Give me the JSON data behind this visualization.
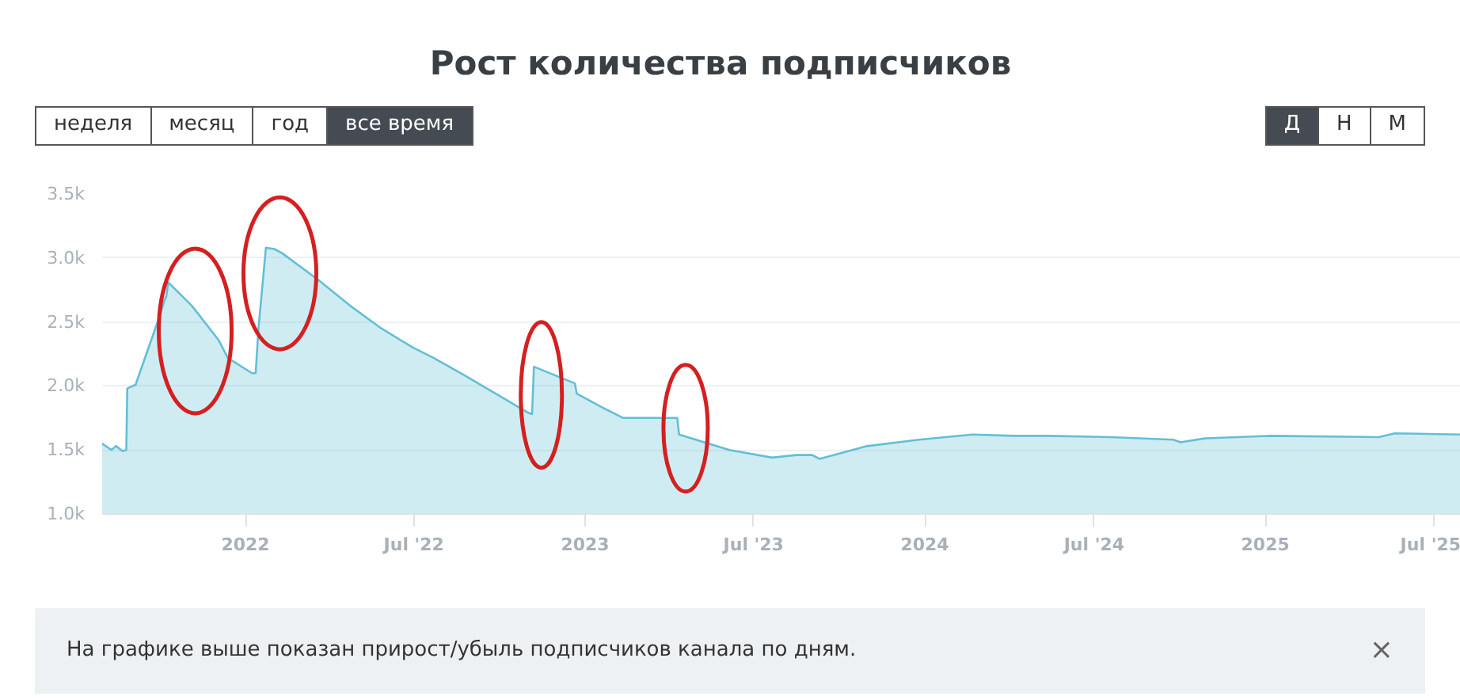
{
  "chart_data": {
    "type": "area",
    "title": "Рост количества подписчиков",
    "x": [
      "2021-07-31",
      "2021-08-10",
      "2021-08-15",
      "2021-08-22",
      "2021-08-26",
      "2021-08-27",
      "2021-09-05",
      "2021-10-01",
      "2021-10-06",
      "2021-10-08",
      "2021-10-10",
      "2021-11-04",
      "2021-12-03",
      "2021-12-13",
      "2022-01-08",
      "2022-01-12",
      "2022-01-15",
      "2022-01-23",
      "2022-02-01",
      "2022-02-09",
      "2022-03-20",
      "2022-04-23",
      "2022-05-27",
      "2022-06-30",
      "2022-07-22",
      "2022-08-25",
      "2022-11-01",
      "2022-11-05",
      "2022-11-07",
      "2022-12-21",
      "2022-12-23",
      "2023-01-20",
      "2023-02-11",
      "2023-04-10",
      "2023-04-12",
      "2023-06-05",
      "2023-07-21",
      "2023-08-16",
      "2023-09-02",
      "2023-09-10",
      "2023-10-31",
      "2023-12-26",
      "2024-02-21",
      "2024-04-06",
      "2024-05-11",
      "2024-07-18",
      "2024-09-24",
      "2024-10-02",
      "2024-10-28",
      "2025-01-04",
      "2025-05-03",
      "2025-05-20",
      "2025-07-30"
    ],
    "series": [
      {
        "color": "#63bfd6",
        "values": [
          1550,
          1500,
          1530,
          1490,
          1500,
          1980,
          2010,
          2550,
          2670,
          2700,
          2810,
          2630,
          2360,
          2220,
          2100,
          2100,
          2450,
          3080,
          3070,
          3040,
          2830,
          2630,
          2450,
          2300,
          2220,
          2080,
          1790,
          1780,
          2150,
          2020,
          1940,
          1830,
          1750,
          1750,
          1620,
          1500,
          1440,
          1460,
          1460,
          1430,
          1530,
          1580,
          1620,
          1610,
          1610,
          1600,
          1580,
          1560,
          1590,
          1610,
          1600,
          1630,
          1620
        ]
      }
    ],
    "xlim": [
      "2021-07-31",
      "2025-07-30"
    ],
    "ylim": [
      1000,
      3500
    ],
    "xticks": [
      {
        "value": "2022-01-01",
        "label": "2022"
      },
      {
        "value": "2022-07-01",
        "label": "Jul '22"
      },
      {
        "value": "2023-01-01",
        "label": "2023"
      },
      {
        "value": "2023-07-01",
        "label": "Jul '23"
      },
      {
        "value": "2024-01-01",
        "label": "2024"
      },
      {
        "value": "2024-07-01",
        "label": "Jul '24"
      },
      {
        "value": "2025-01-01",
        "label": "2025"
      },
      {
        "value": "2025-07-01",
        "label": "Jul '25"
      }
    ],
    "yticks": [
      {
        "value": 1000,
        "label": "1.0k"
      },
      {
        "value": 1500,
        "label": "1.5k"
      },
      {
        "value": 2000,
        "label": "2.0k"
      },
      {
        "value": 2500,
        "label": "2.5k"
      },
      {
        "value": 3000,
        "label": "3.0k"
      },
      {
        "value": 3500,
        "label": "3.5k"
      }
    ],
    "grid": "y",
    "annotations": [
      "неделя",
      "месяц",
      "год",
      "все время",
      "Д",
      "Н",
      "М",
      "На графике выше показан прирост/убыль подписчиков канала по дням.",
      "×"
    ]
  }
}
